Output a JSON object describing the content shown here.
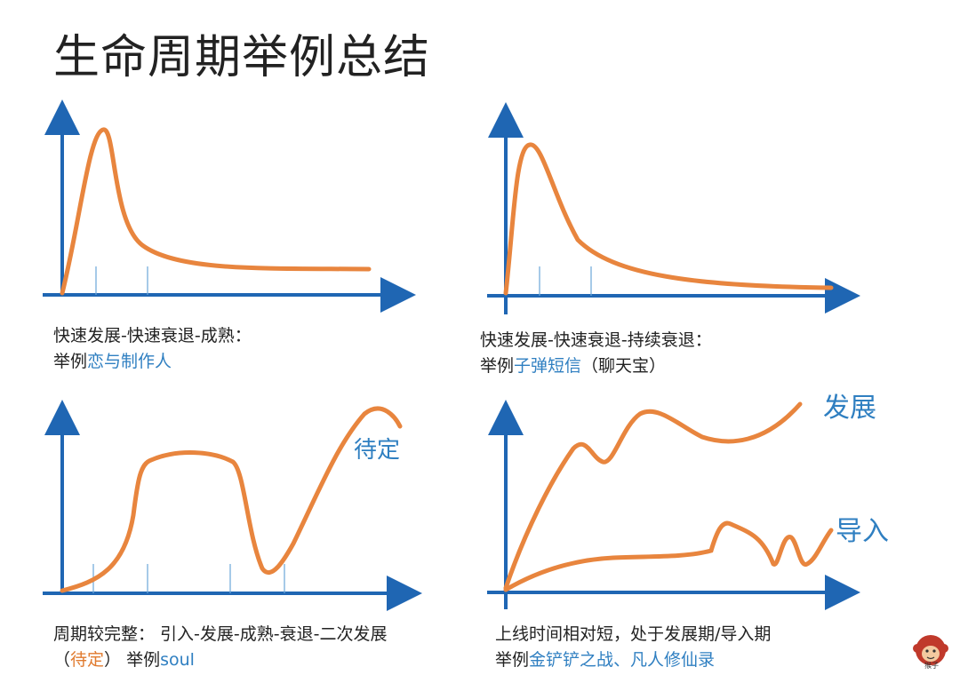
{
  "title": "生命周期举例总结",
  "colors": {
    "axis": "#1f66b3",
    "curve": "#e8853e",
    "highlight": "#2f7fc1",
    "dark_text": "#222222"
  },
  "panels": [
    {
      "caption_line1": "快速发展-快速衰退-成熟：",
      "caption_prefix": "举例",
      "caption_example": "恋与制作人"
    },
    {
      "caption_line1": "快速发展-快速衰退-持续衰退：",
      "caption_prefix": "举例",
      "caption_example": "子弹短信",
      "caption_suffix": "（聊天宝）"
    },
    {
      "caption_line1": "周期较完整： 引入-发展-成熟-衰退-二次发展",
      "caption_open": "（",
      "caption_pending": "待定",
      "caption_close": "） 举例",
      "caption_example": "soul",
      "curve_label": "待定"
    },
    {
      "caption_line1": "上线时间相对短，处于发展期/导入期",
      "caption_prefix": "举例",
      "caption_example": "金铲铲之战、凡人修仙录",
      "curve_label_upper": "发展",
      "curve_label_lower": "导入"
    }
  ],
  "logo_text": "猴子"
}
